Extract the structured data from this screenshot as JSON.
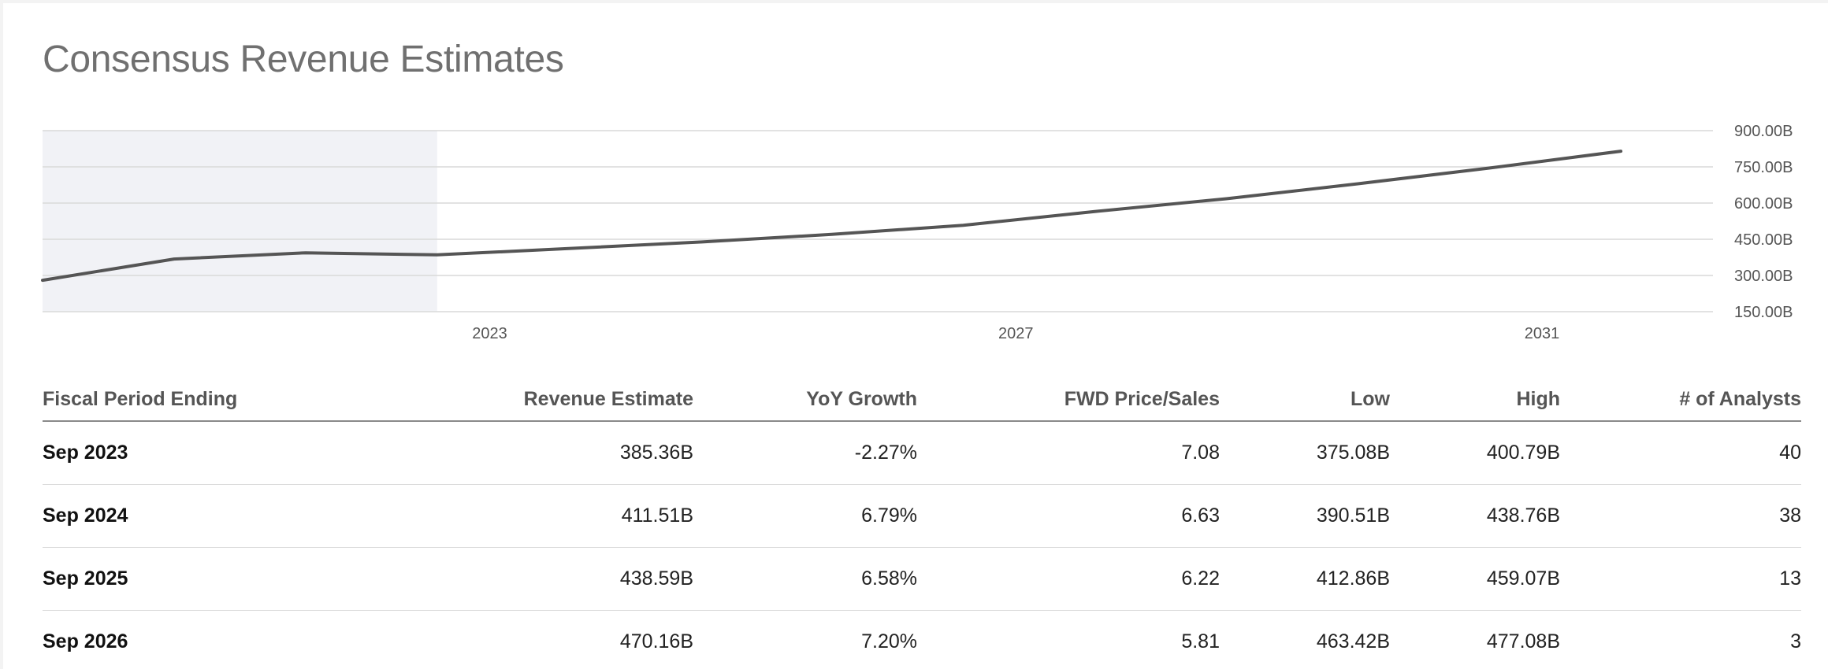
{
  "title": "Consensus Revenue Estimates",
  "colors": {
    "line": "#555555",
    "shaded_region": "#f1f2f6",
    "grid": "#d9d9d9"
  },
  "chart_data": {
    "type": "line",
    "x_tick_labels": [
      "2023",
      "2027",
      "2031"
    ],
    "y_tick_labels": [
      "900.00B",
      "750.00B",
      "600.00B",
      "450.00B",
      "300.00B",
      "150.00B"
    ],
    "ylim": [
      150,
      900
    ],
    "y_unit": "B",
    "xlim": [
      2019.6,
      2032.3
    ],
    "shaded_x_range": [
      2019.6,
      2022.6
    ],
    "grid": true,
    "y_axis_position": "right",
    "series": [
      {
        "x": [
          2019.6,
          2020.6,
          2021.6,
          2022.6,
          2023.6,
          2024.6,
          2025.6,
          2026.6,
          2027.6,
          2028.6,
          2029.6,
          2030.6,
          2031.6
        ],
        "values": [
          280,
          368,
          394,
          385.36,
          411.51,
          438.59,
          470.16,
          508,
          565,
          618,
          680,
          745,
          815
        ]
      }
    ]
  },
  "table": {
    "headers": [
      "Fiscal Period Ending",
      "Revenue Estimate",
      "YoY Growth",
      "FWD Price/Sales",
      "Low",
      "High",
      "# of Analysts"
    ],
    "rows": [
      [
        "Sep 2023",
        "385.36B",
        "-2.27%",
        "7.08",
        "375.08B",
        "400.79B",
        "40"
      ],
      [
        "Sep 2024",
        "411.51B",
        "6.79%",
        "6.63",
        "390.51B",
        "438.76B",
        "38"
      ],
      [
        "Sep 2025",
        "438.59B",
        "6.58%",
        "6.22",
        "412.86B",
        "459.07B",
        "13"
      ],
      [
        "Sep 2026",
        "470.16B",
        "7.20%",
        "5.81",
        "463.42B",
        "477.08B",
        "3"
      ]
    ]
  }
}
